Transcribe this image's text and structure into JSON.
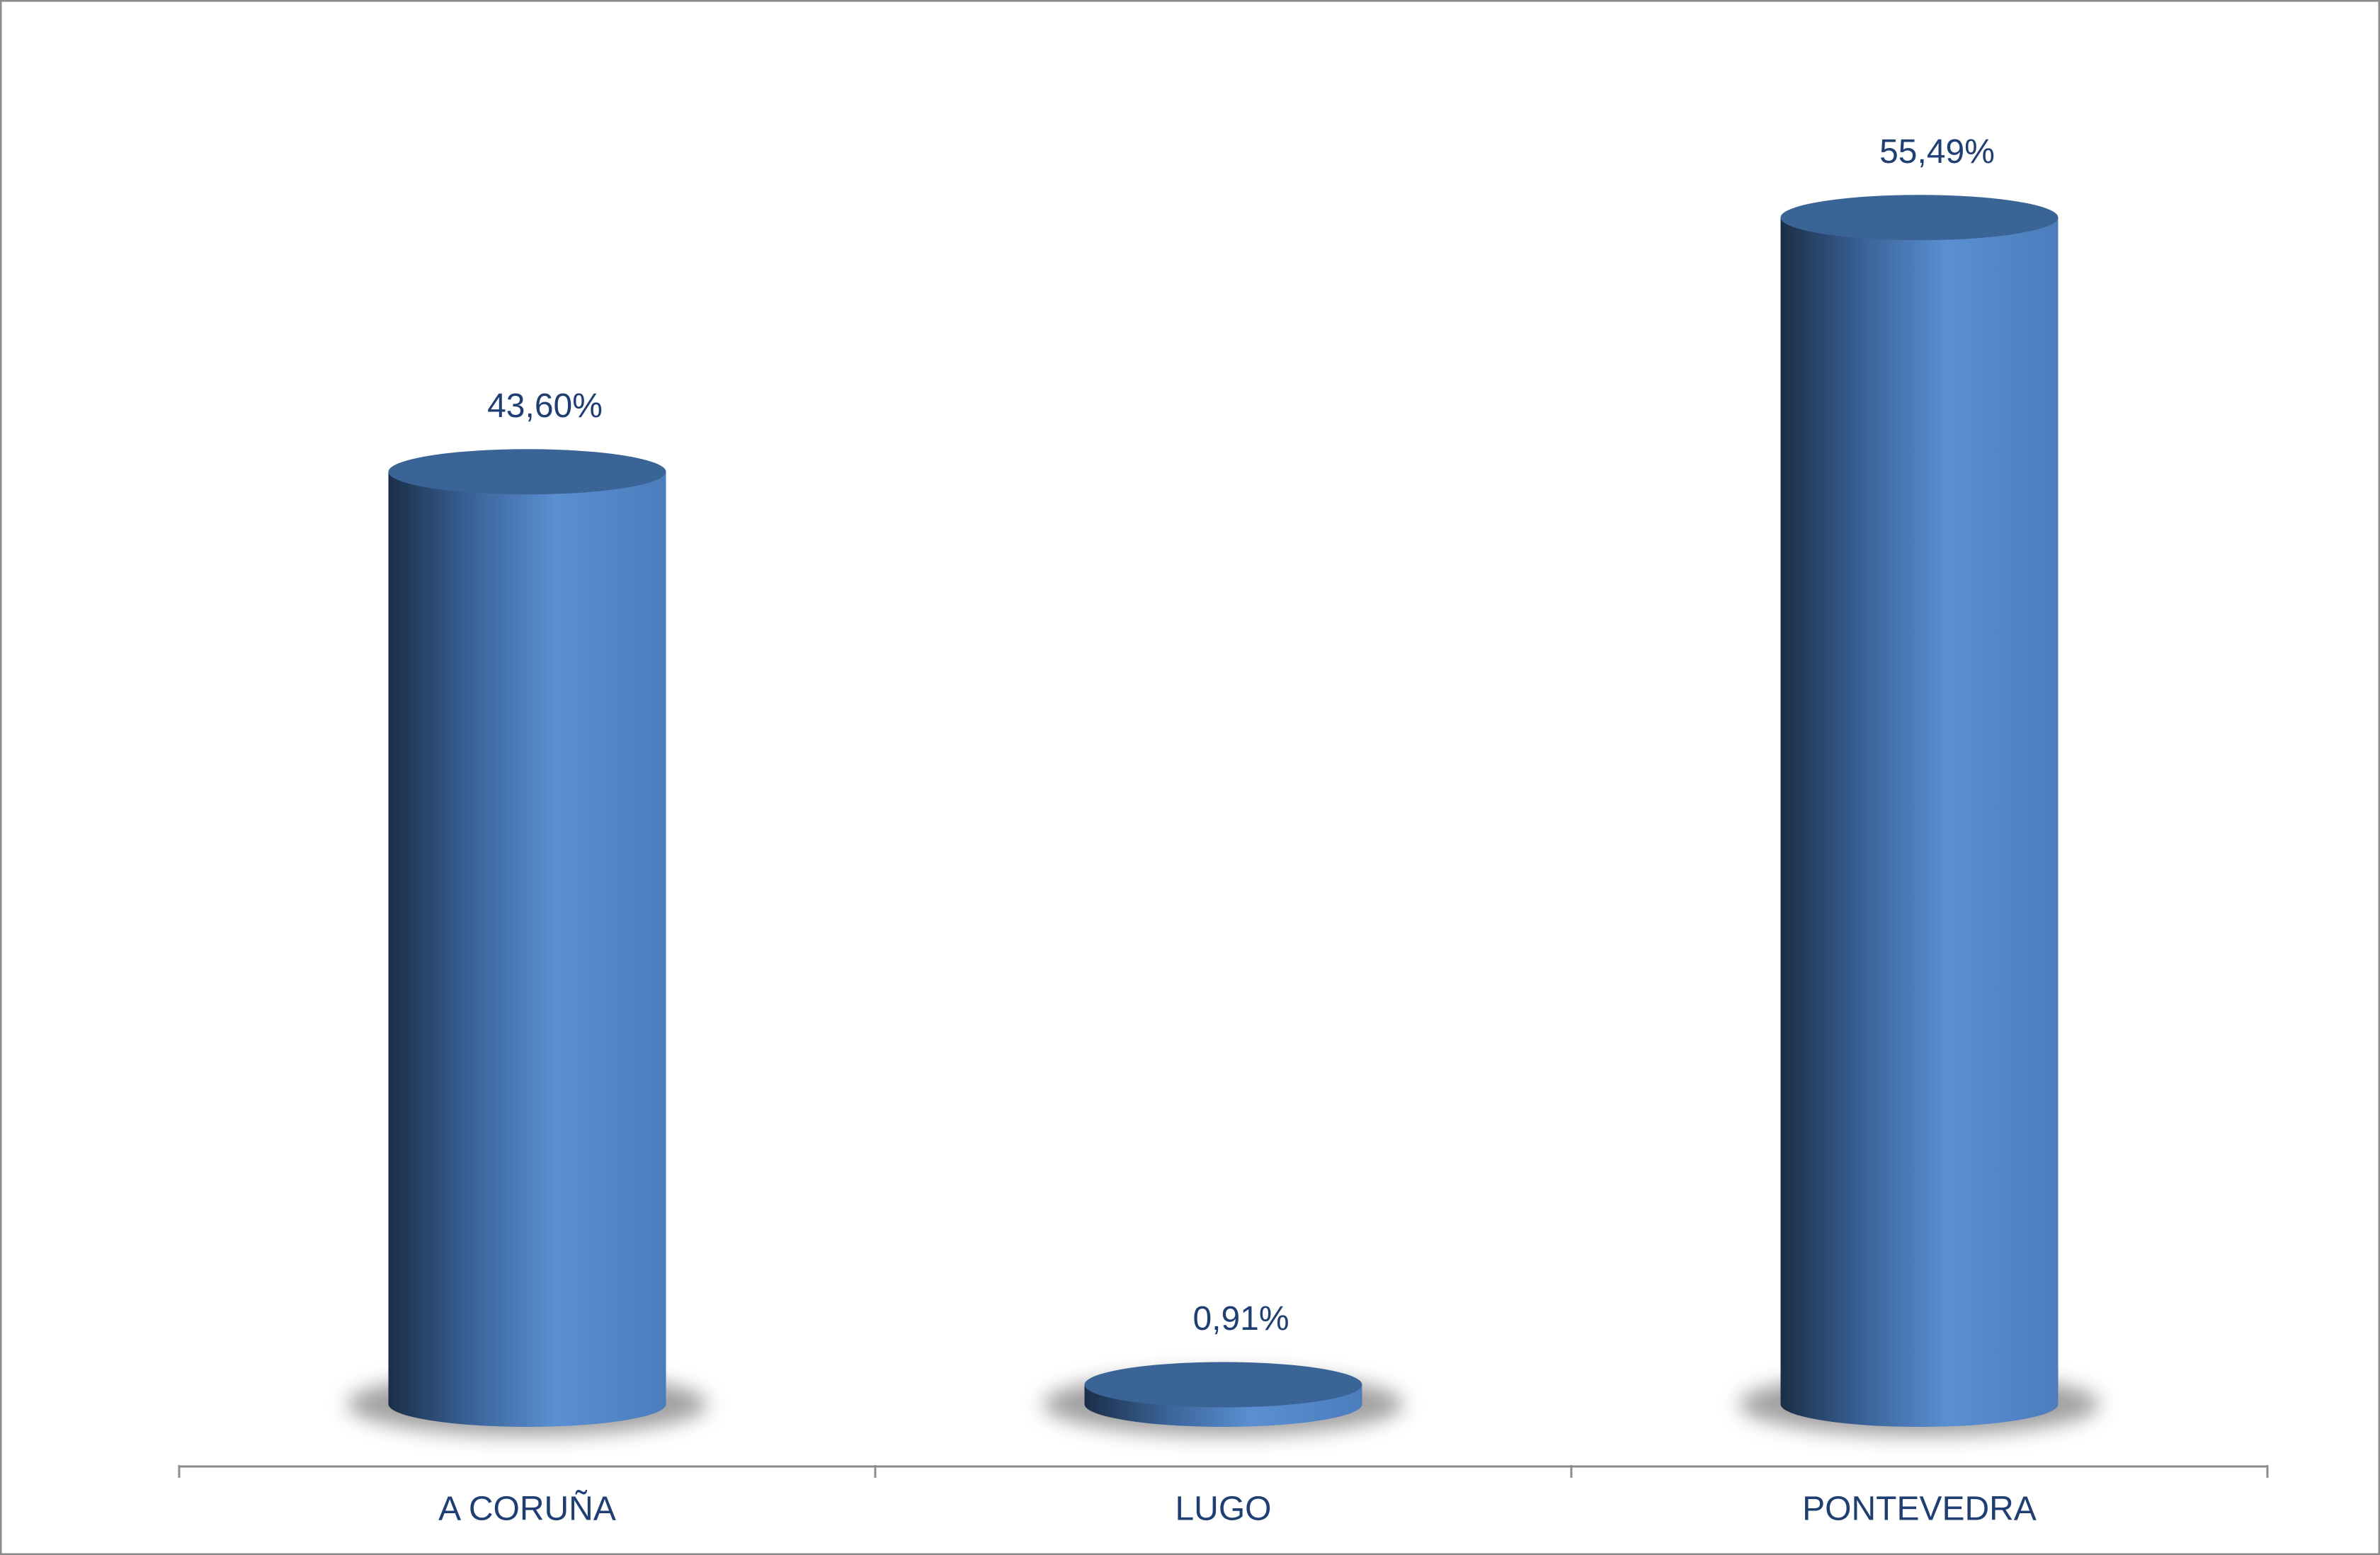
{
  "chart_data": {
    "type": "bar",
    "categories": [
      "A CORUÑA",
      "LUGO",
      "PONTEVEDRA"
    ],
    "values": [
      43.6,
      0.91,
      55.49
    ],
    "value_labels": [
      "43,60%",
      "0,91%",
      "55,49%"
    ],
    "color": "#4f83c4"
  }
}
